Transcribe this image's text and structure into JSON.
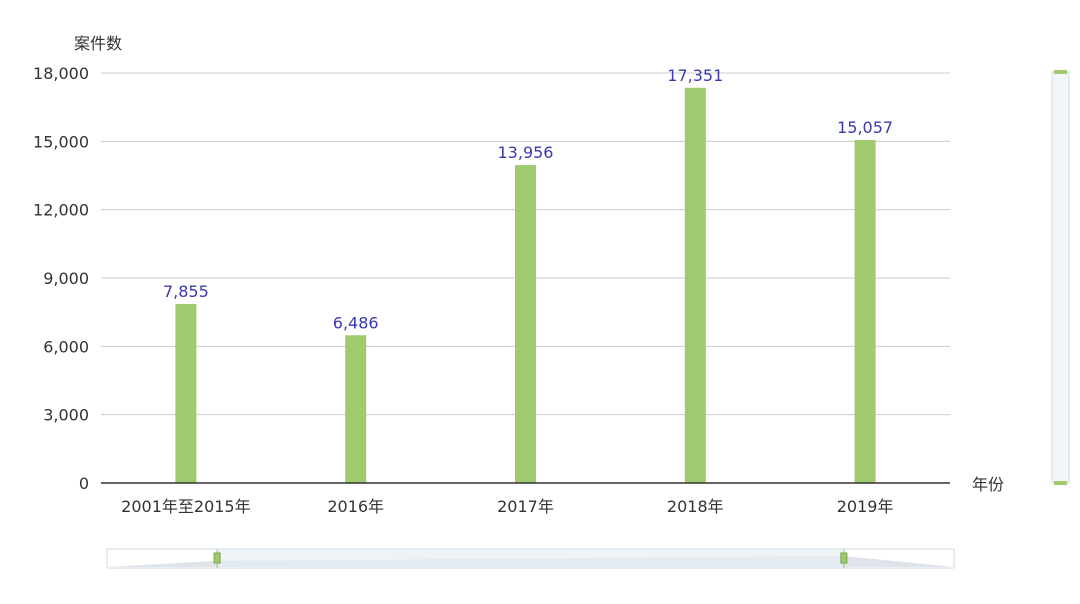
{
  "chart_data": {
    "type": "bar",
    "ylabel": "案件数",
    "xlabel": "年份",
    "categories": [
      "2001年至2015年",
      "2016年",
      "2017年",
      "2018年",
      "2019年"
    ],
    "values": [
      7855,
      6486,
      13956,
      17351,
      15057
    ],
    "value_labels": [
      "7,855",
      "6,486",
      "13,956",
      "17,351",
      "15,057"
    ],
    "ylim": [
      0,
      18000
    ],
    "yticks": [
      0,
      3000,
      6000,
      9000,
      12000,
      15000,
      18000
    ],
    "ytick_labels": [
      "0",
      "3,000",
      "6,000",
      "9,000",
      "12,000",
      "15,000",
      "18,000"
    ],
    "grid": true,
    "bar_color": "#9fca6d",
    "label_color": "#3a3ab0",
    "x_zoom_range": [
      0.13,
      0.87
    ],
    "y_zoom_range": [
      0,
      1
    ]
  }
}
